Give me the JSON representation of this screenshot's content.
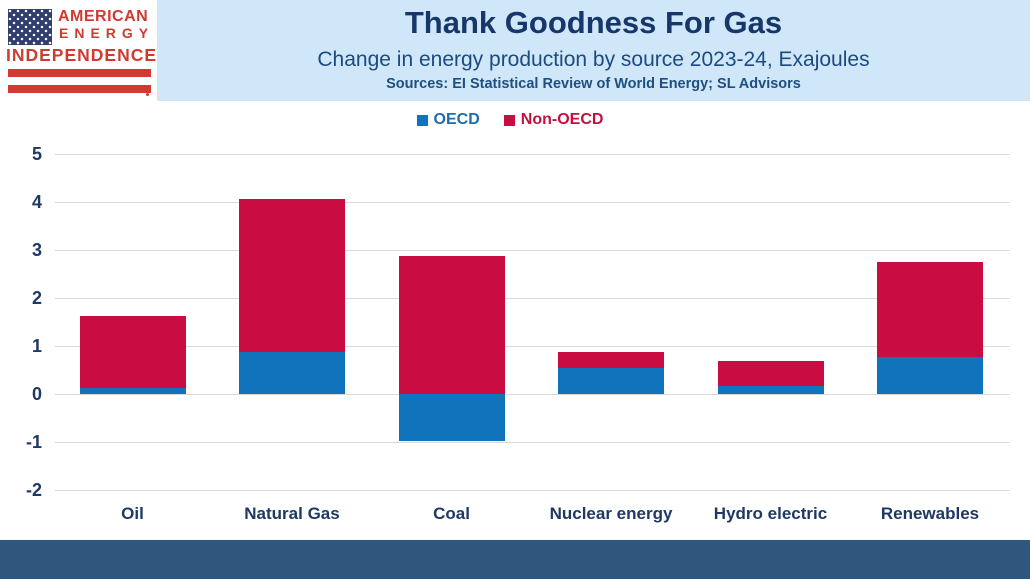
{
  "logo": {
    "line1": "AMERICAN",
    "line2": "ENERGY",
    "line3": "INDEPENDENCE"
  },
  "chart_data": {
    "type": "bar",
    "stacked": true,
    "title": "Thank Goodness For Gas",
    "subtitle": "Change in energy production by source 2023-24, Exajoules",
    "sources": "Sources: EI Statistical Review of World Energy; SL Advisors",
    "categories": [
      "Oil",
      "Natural Gas",
      "Coal",
      "Nuclear energy",
      "Hydro electric",
      "Renewables"
    ],
    "series": [
      {
        "name": "OECD",
        "color": "#1173bc",
        "label_color": "#1e6cad",
        "values": [
          0.13,
          0.88,
          -0.97,
          0.54,
          0.16,
          0.78
        ]
      },
      {
        "name": "Non-OECD",
        "color": "#c90d42",
        "label_color": "#bf1240",
        "values": [
          1.5,
          3.18,
          2.88,
          0.33,
          0.53,
          1.98
        ]
      }
    ],
    "stack_tops": [
      1.63,
      4.06,
      2.88,
      0.87,
      0.69,
      2.76
    ],
    "ylabel": "",
    "xlabel": "",
    "ylim": [
      -2,
      5
    ],
    "yticks": [
      5,
      4,
      3,
      2,
      1,
      0,
      -1,
      -2
    ],
    "grid": true,
    "legend_position": "top"
  },
  "colors": {
    "header_bg": "#cfe7f8",
    "title": "#17376a",
    "subtitle": "#1c4b80",
    "sources": "#1e4f7e",
    "axis_label": "#1f3864",
    "grid": "#d9d9d9",
    "footer": "#2f567c",
    "logo_red": "#cf3a31",
    "logo_navy": "#303d6d",
    "oecd_blue": "#1173bc",
    "non_oecd_red": "#c90d42"
  }
}
